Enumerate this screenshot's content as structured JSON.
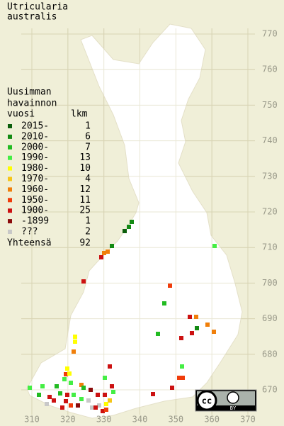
{
  "title": [
    "Utricularia",
    "australis"
  ],
  "legend": {
    "heading": [
      "Uusimman",
      "havainnon",
      "vuosi"
    ],
    "count_heading": "lkm",
    "classes": [
      {
        "label": "2015-",
        "count": 1,
        "color": "#0b5d0b"
      },
      {
        "label": "2010-",
        "count": 6,
        "color": "#138a13"
      },
      {
        "label": "2000-",
        "count": 7,
        "color": "#22bb22"
      },
      {
        "label": "1990-",
        "count": 13,
        "color": "#44ee44"
      },
      {
        "label": "1980-",
        "count": 10,
        "color": "#ffff00"
      },
      {
        "label": "1970-",
        "count": 4,
        "color": "#f5c518"
      },
      {
        "label": "1960-",
        "count": 12,
        "color": "#f07f0a"
      },
      {
        "label": "1950-",
        "count": 11,
        "color": "#f03c0a"
      },
      {
        "label": "1900-",
        "count": 25,
        "color": "#cc1111"
      },
      {
        "label": "-1899",
        "count": 1,
        "color": "#8b0b0b"
      },
      {
        "label": "???",
        "count": 2,
        "color": "#c8c8c8"
      }
    ],
    "total_label": "Yhteensä",
    "total": 92
  },
  "axes": {
    "x_ticks": [
      310,
      320,
      330,
      340,
      350,
      360,
      370
    ],
    "y_ticks": [
      670,
      680,
      690,
      700,
      710,
      720,
      730,
      740,
      750,
      760,
      770
    ]
  },
  "license": {
    "cc": "cc",
    "by": "BY"
  }
}
